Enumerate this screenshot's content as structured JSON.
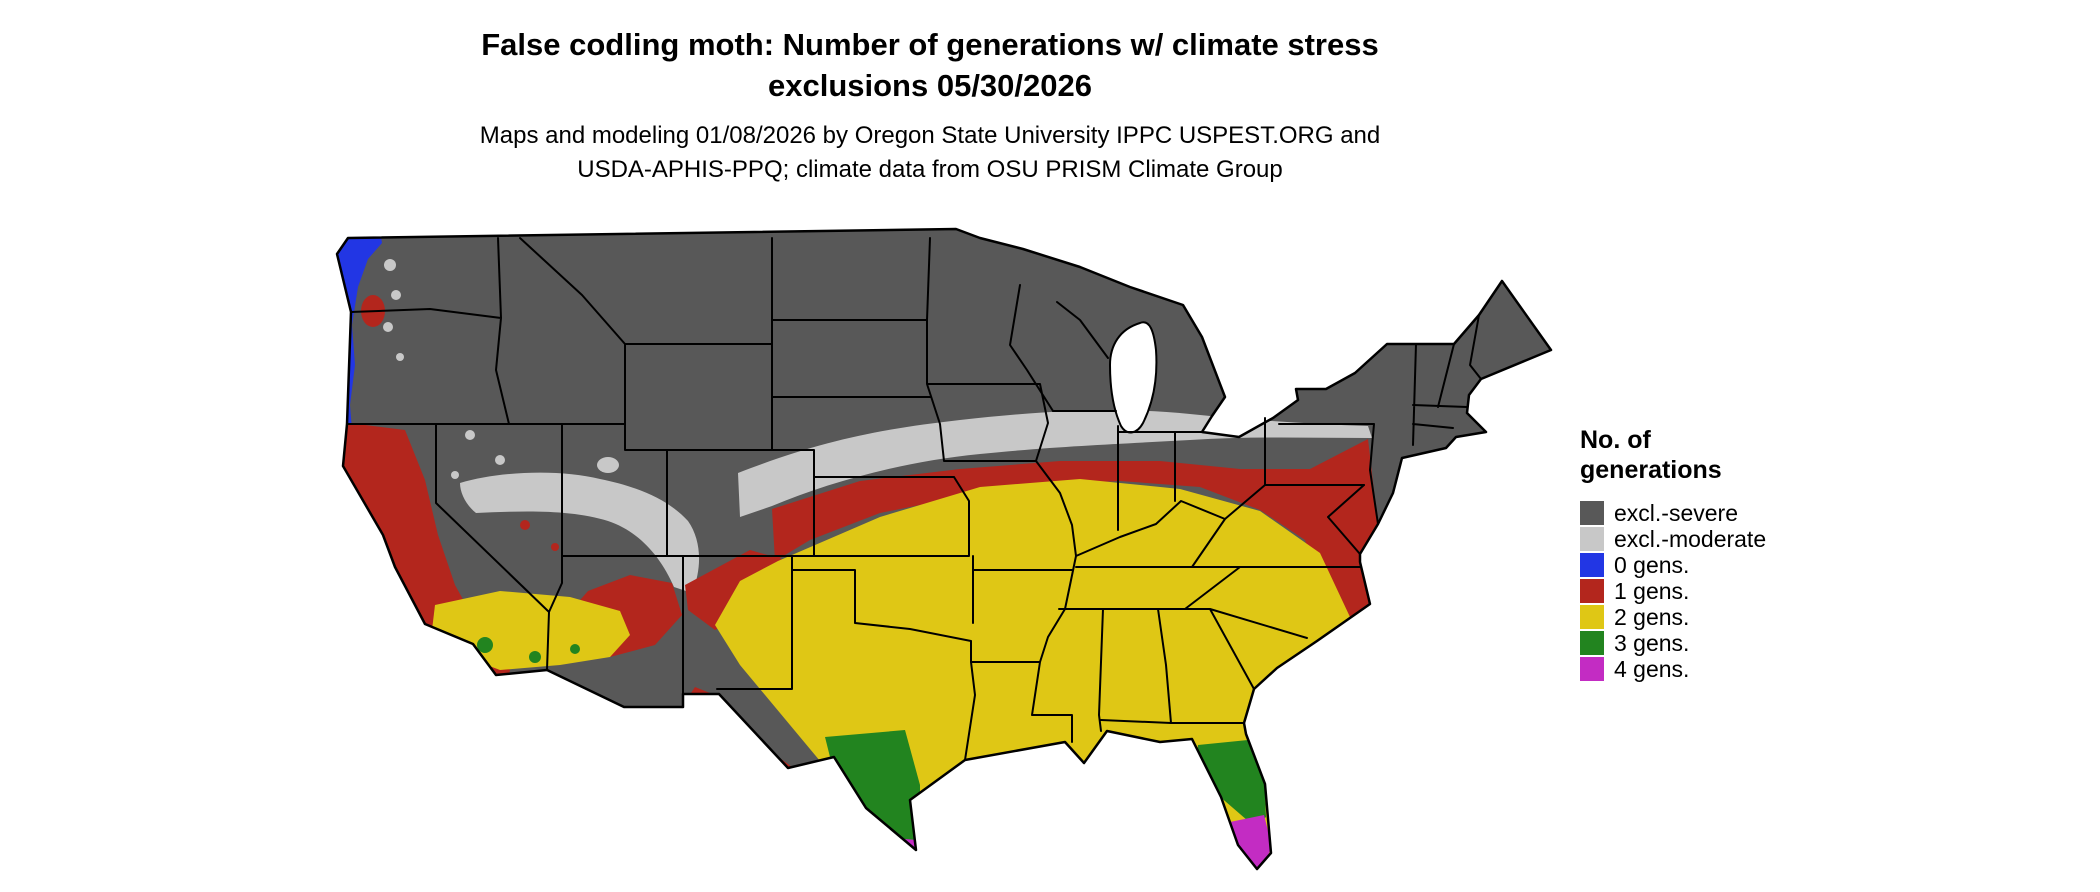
{
  "header": {
    "title_line1": "False codling moth: Number of generations w/ climate stress",
    "title_line2": "exclusions 05/30/2026",
    "subtitle_line1": "Maps and modeling 01/08/2026 by Oregon State University IPPC USPEST.ORG and",
    "subtitle_line2": "USDA-APHIS-PPQ; climate data from OSU PRISM Climate Group"
  },
  "legend": {
    "title_line1": "No. of",
    "title_line2": "generations",
    "items": [
      {
        "label": "excl.-severe",
        "color": "#585858"
      },
      {
        "label": "excl.-moderate",
        "color": "#c8c8c8"
      },
      {
        "label": "0 gens.",
        "color": "#2236e4"
      },
      {
        "label": "1 gens.",
        "color": "#b3261d"
      },
      {
        "label": "2 gens.",
        "color": "#dfc715"
      },
      {
        "label": "3 gens.",
        "color": "#22841f"
      },
      {
        "label": "4 gens.",
        "color": "#c32cc3"
      }
    ]
  },
  "map": {
    "border_color": "#000000",
    "water_color": "#ffffff"
  }
}
